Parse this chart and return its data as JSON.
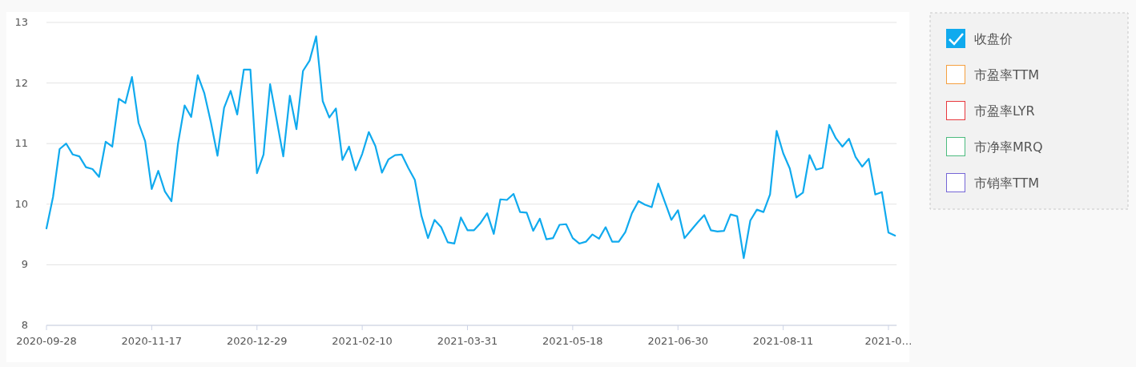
{
  "chart_data": {
    "type": "line",
    "ylim": [
      8,
      13
    ],
    "categories": [
      "2020-09-28",
      null,
      null,
      null,
      null,
      null,
      null,
      null,
      null,
      null,
      null,
      null,
      null,
      null,
      null,
      null,
      "2020-11-17",
      null,
      null,
      null,
      null,
      null,
      null,
      null,
      null,
      null,
      null,
      null,
      null,
      null,
      null,
      null,
      "2020-12-29",
      null,
      null,
      null,
      null,
      null,
      null,
      null,
      null,
      null,
      null,
      null,
      null,
      null,
      null,
      null,
      "2021-02-10",
      null,
      null,
      null,
      null,
      null,
      null,
      null,
      null,
      null,
      null,
      null,
      null,
      null,
      null,
      null,
      "2021-03-31",
      null,
      null,
      null,
      null,
      null,
      null,
      null,
      null,
      null,
      null,
      null,
      null,
      null,
      null,
      null,
      "2021-05-18",
      null,
      null,
      null,
      null,
      null,
      null,
      null,
      null,
      null,
      null,
      null,
      null,
      null,
      null,
      null,
      "2021-06-30",
      null,
      null,
      null,
      null,
      null,
      null,
      null,
      null,
      null,
      null,
      null,
      null,
      null,
      null,
      null,
      "2021-08-11",
      null,
      null,
      null,
      null,
      null,
      null,
      null,
      null,
      null,
      null,
      null,
      null,
      null,
      null,
      null,
      "2021-0…",
      null
    ],
    "yticks": [
      8,
      9,
      10,
      11,
      12,
      13
    ],
    "grid": "y",
    "legend": "right",
    "marker": "none",
    "line_style": "solid",
    "series": [
      {
        "name": "收盘价",
        "color": "#10aaee",
        "values": [
          9.6,
          10.12,
          10.91,
          11.0,
          10.82,
          10.79,
          10.61,
          10.58,
          10.45,
          11.03,
          10.95,
          11.74,
          11.67,
          12.1,
          11.34,
          11.04,
          10.25,
          10.55,
          10.21,
          10.05,
          11.0,
          11.63,
          11.44,
          12.13,
          11.83,
          11.35,
          10.8,
          11.59,
          11.87,
          11.48,
          12.22,
          12.22,
          10.51,
          10.82,
          11.98,
          11.39,
          10.79,
          11.79,
          11.24,
          12.2,
          12.37,
          12.77,
          11.7,
          11.43,
          11.58,
          10.73,
          10.95,
          10.56,
          10.83,
          11.19,
          10.96,
          10.52,
          10.74,
          10.81,
          10.82,
          10.6,
          10.4,
          9.81,
          9.44,
          9.74,
          9.62,
          9.37,
          9.35,
          9.78,
          9.57,
          9.57,
          9.69,
          9.85,
          9.51,
          10.08,
          10.07,
          10.17,
          9.87,
          9.86,
          9.56,
          9.76,
          9.42,
          9.44,
          9.66,
          9.67,
          9.44,
          9.35,
          9.38,
          9.5,
          9.43,
          9.62,
          9.38,
          9.38,
          9.54,
          9.85,
          10.05,
          9.99,
          9.95,
          10.34,
          10.04,
          9.74,
          9.9,
          9.44,
          9.57,
          9.7,
          9.82,
          9.57,
          9.55,
          9.56,
          9.83,
          9.8,
          9.11,
          9.73,
          9.91,
          9.87,
          10.16,
          11.21,
          10.84,
          10.59,
          10.11,
          10.19,
          10.81,
          10.57,
          10.6,
          11.31,
          11.09,
          10.95,
          11.08,
          10.78,
          10.62,
          10.75,
          10.16,
          10.2,
          9.53,
          9.48
        ]
      },
      {
        "name": "市盈率TTM",
        "color": "#f5a040",
        "values": [
          null,
          null,
          null,
          null,
          null,
          null,
          null,
          null,
          null,
          null,
          null,
          null,
          null,
          null,
          null,
          null,
          null,
          null,
          null,
          null,
          null,
          null,
          null,
          null,
          null,
          null,
          null,
          null,
          null,
          null,
          null,
          null,
          null,
          null,
          null,
          null,
          null,
          null,
          null,
          null,
          null,
          null,
          null,
          null,
          null,
          null,
          null,
          null,
          null,
          null,
          null,
          null,
          null,
          null,
          null,
          null,
          null,
          null,
          null,
          null,
          null,
          null,
          null,
          null,
          null,
          null,
          null,
          null,
          null,
          null,
          null,
          null,
          null,
          null,
          null,
          null,
          null,
          null,
          null,
          null,
          null,
          null,
          null,
          null,
          null,
          null,
          null,
          null,
          null,
          null,
          null,
          null,
          null,
          null,
          null,
          null,
          null,
          null,
          null,
          null,
          null,
          null,
          null,
          null,
          null,
          null,
          null,
          null,
          null,
          null,
          null,
          null,
          null,
          null,
          null,
          null,
          null,
          null,
          null,
          null,
          null,
          null,
          null,
          null,
          null,
          null,
          null,
          null,
          null,
          null
        ]
      },
      {
        "name": "市盈率LYR",
        "color": "#e8383d",
        "values": [
          null,
          null,
          null,
          null,
          null,
          null,
          null,
          null,
          null,
          null,
          null,
          null,
          null,
          null,
          null,
          null,
          null,
          null,
          null,
          null,
          null,
          null,
          null,
          null,
          null,
          null,
          null,
          null,
          null,
          null,
          null,
          null,
          null,
          null,
          null,
          null,
          null,
          null,
          null,
          null,
          null,
          null,
          null,
          null,
          null,
          null,
          null,
          null,
          null,
          null,
          null,
          null,
          null,
          null,
          null,
          null,
          null,
          null,
          null,
          null,
          null,
          null,
          null,
          null,
          null,
          null,
          null,
          null,
          null,
          null,
          null,
          null,
          null,
          null,
          null,
          null,
          null,
          null,
          null,
          null,
          null,
          null,
          null,
          null,
          null,
          null,
          null,
          null,
          null,
          null,
          null,
          null,
          null,
          null,
          null,
          null,
          null,
          null,
          null,
          null,
          null,
          null,
          null,
          null,
          null,
          null,
          null,
          null,
          null,
          null,
          null,
          null,
          null,
          null,
          null,
          null,
          null,
          null,
          null,
          null,
          null,
          null,
          null,
          null,
          null,
          null,
          null,
          null,
          null,
          null
        ]
      },
      {
        "name": "市净率MRQ",
        "color": "#4cbb7f",
        "values": [
          null,
          null,
          null,
          null,
          null,
          null,
          null,
          null,
          null,
          null,
          null,
          null,
          null,
          null,
          null,
          null,
          null,
          null,
          null,
          null,
          null,
          null,
          null,
          null,
          null,
          null,
          null,
          null,
          null,
          null,
          null,
          null,
          null,
          null,
          null,
          null,
          null,
          null,
          null,
          null,
          null,
          null,
          null,
          null,
          null,
          null,
          null,
          null,
          null,
          null,
          null,
          null,
          null,
          null,
          null,
          null,
          null,
          null,
          null,
          null,
          null,
          null,
          null,
          null,
          null,
          null,
          null,
          null,
          null,
          null,
          null,
          null,
          null,
          null,
          null,
          null,
          null,
          null,
          null,
          null,
          null,
          null,
          null,
          null,
          null,
          null,
          null,
          null,
          null,
          null,
          null,
          null,
          null,
          null,
          null,
          null,
          null,
          null,
          null,
          null,
          null,
          null,
          null,
          null,
          null,
          null,
          null,
          null,
          null,
          null,
          null,
          null,
          null,
          null,
          null,
          null,
          null,
          null,
          null,
          null,
          null,
          null,
          null,
          null,
          null,
          null,
          null,
          null,
          null,
          null
        ]
      },
      {
        "name": "市销率TTM",
        "color": "#7566d6",
        "values": [
          null,
          null,
          null,
          null,
          null,
          null,
          null,
          null,
          null,
          null,
          null,
          null,
          null,
          null,
          null,
          null,
          null,
          null,
          null,
          null,
          null,
          null,
          null,
          null,
          null,
          null,
          null,
          null,
          null,
          null,
          null,
          null,
          null,
          null,
          null,
          null,
          null,
          null,
          null,
          null,
          null,
          null,
          null,
          null,
          null,
          null,
          null,
          null,
          null,
          null,
          null,
          null,
          null,
          null,
          null,
          null,
          null,
          null,
          null,
          null,
          null,
          null,
          null,
          null,
          null,
          null,
          null,
          null,
          null,
          null,
          null,
          null,
          null,
          null,
          null,
          null,
          null,
          null,
          null,
          null,
          null,
          null,
          null,
          null,
          null,
          null,
          null,
          null,
          null,
          null,
          null,
          null,
          null,
          null,
          null,
          null,
          null,
          null,
          null,
          null,
          null,
          null,
          null,
          null,
          null,
          null,
          null,
          null,
          null,
          null,
          null,
          null,
          null,
          null,
          null,
          null,
          null,
          null,
          null,
          null,
          null,
          null,
          null,
          null,
          null,
          null,
          null,
          null,
          null,
          null
        ]
      }
    ]
  }
}
